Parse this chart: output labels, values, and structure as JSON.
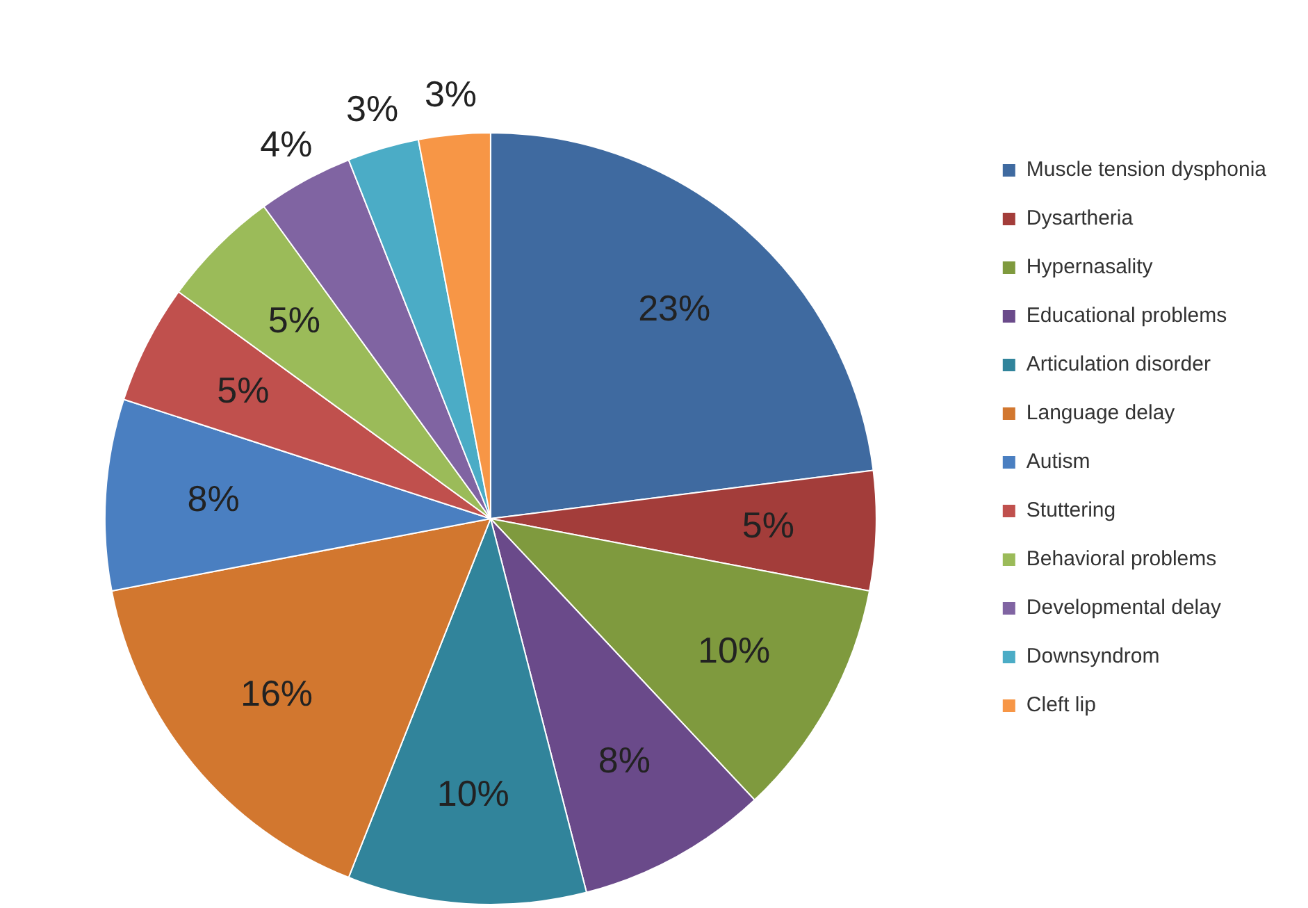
{
  "chart_data": {
    "type": "pie",
    "categories": [
      "Muscle tension dysphonia",
      "Dysartheria",
      "Hypernasality",
      "Educational problems",
      "Articulation disorder",
      "Language delay",
      "Autism",
      "Stuttering",
      "Behavioral problems",
      "Developmental delay",
      "Downsyndrom",
      "Cleft lip"
    ],
    "values": [
      23,
      5,
      10,
      8,
      10,
      16,
      8,
      5,
      5,
      4,
      3,
      3
    ],
    "value_labels": [
      "23%",
      "5%",
      "10%",
      "8%",
      "10%",
      "16%",
      "8%",
      "5%",
      "5%",
      "4%",
      "3%",
      "3%"
    ],
    "colors": [
      "#3f6aa0",
      "#a33d3a",
      "#7f9a3e",
      "#6a4a8a",
      "#31849b",
      "#d2772f",
      "#4a7fc1",
      "#c0504d",
      "#9bbb59",
      "#8064a2",
      "#4bacc6",
      "#f79646"
    ],
    "legend": "right"
  }
}
